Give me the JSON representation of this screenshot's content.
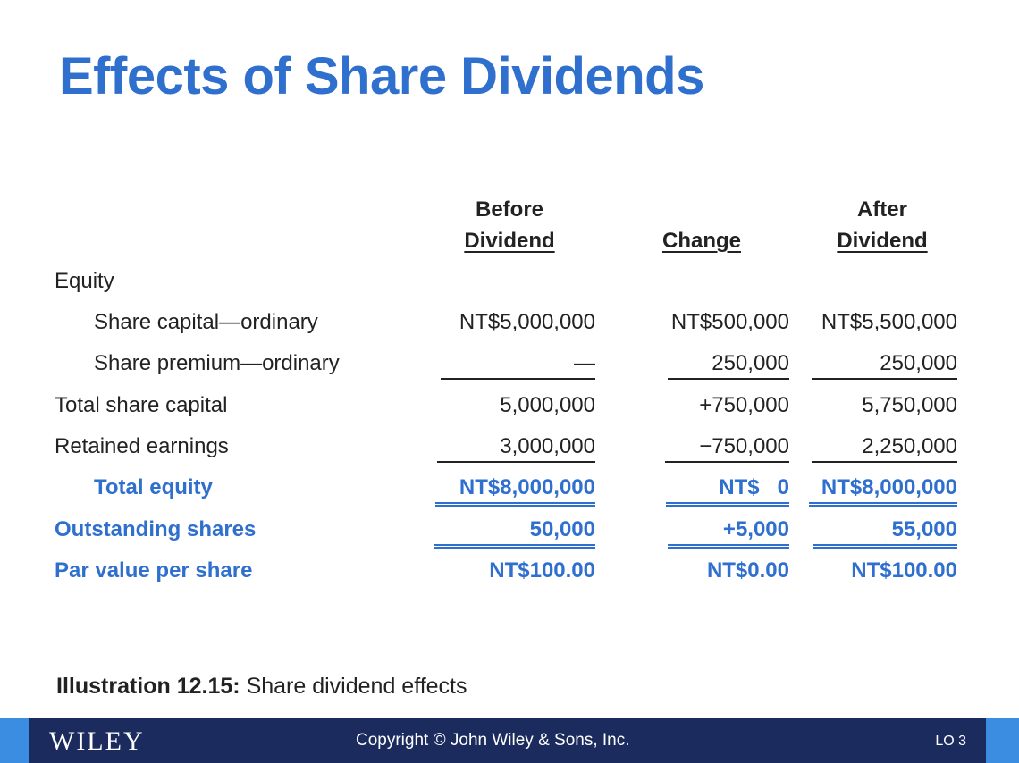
{
  "title": "Effects of Share Dividends",
  "headers": {
    "before_top": "Before",
    "before_bottom": "Dividend",
    "change": "Change",
    "after_top": "After",
    "after_bottom": "Dividend"
  },
  "rows": [
    {
      "label": "Equity",
      "before": "",
      "change": "",
      "after": ""
    },
    {
      "label": "Share capital—ordinary",
      "before": "NT$5,000,000",
      "change": "NT$500,000",
      "after": "NT$5,500,000"
    },
    {
      "label": "Share premium—ordinary",
      "before": "—",
      "change": "250,000",
      "after": "250,000"
    },
    {
      "label": "Total share capital",
      "before": "5,000,000",
      "change": "+750,000",
      "after": "5,750,000"
    },
    {
      "label": "Retained earnings",
      "before": "3,000,000",
      "change": "−750,000",
      "after": "2,250,000"
    },
    {
      "label": "Total equity",
      "before": "NT$8,000,000",
      "change": "NT$   0",
      "after": "NT$8,000,000"
    },
    {
      "label": "Outstanding shares",
      "before": "50,000",
      "change": "+5,000",
      "after": "55,000"
    },
    {
      "label": "Par value per share",
      "before": "NT$100.00",
      "change": "NT$0.00",
      "after": "NT$100.00"
    }
  ],
  "caption": {
    "bold": "Illustration 12.15:",
    "text": " Share dividend effects"
  },
  "footer": {
    "logo": "WILEY",
    "copyright": "Copyright © John Wiley & Sons, Inc.",
    "lo": "LO 3"
  },
  "colors": {
    "accent": "#2f6fce",
    "footer_bg": "#1c2b5e",
    "footer_edge": "#3a8de0"
  }
}
